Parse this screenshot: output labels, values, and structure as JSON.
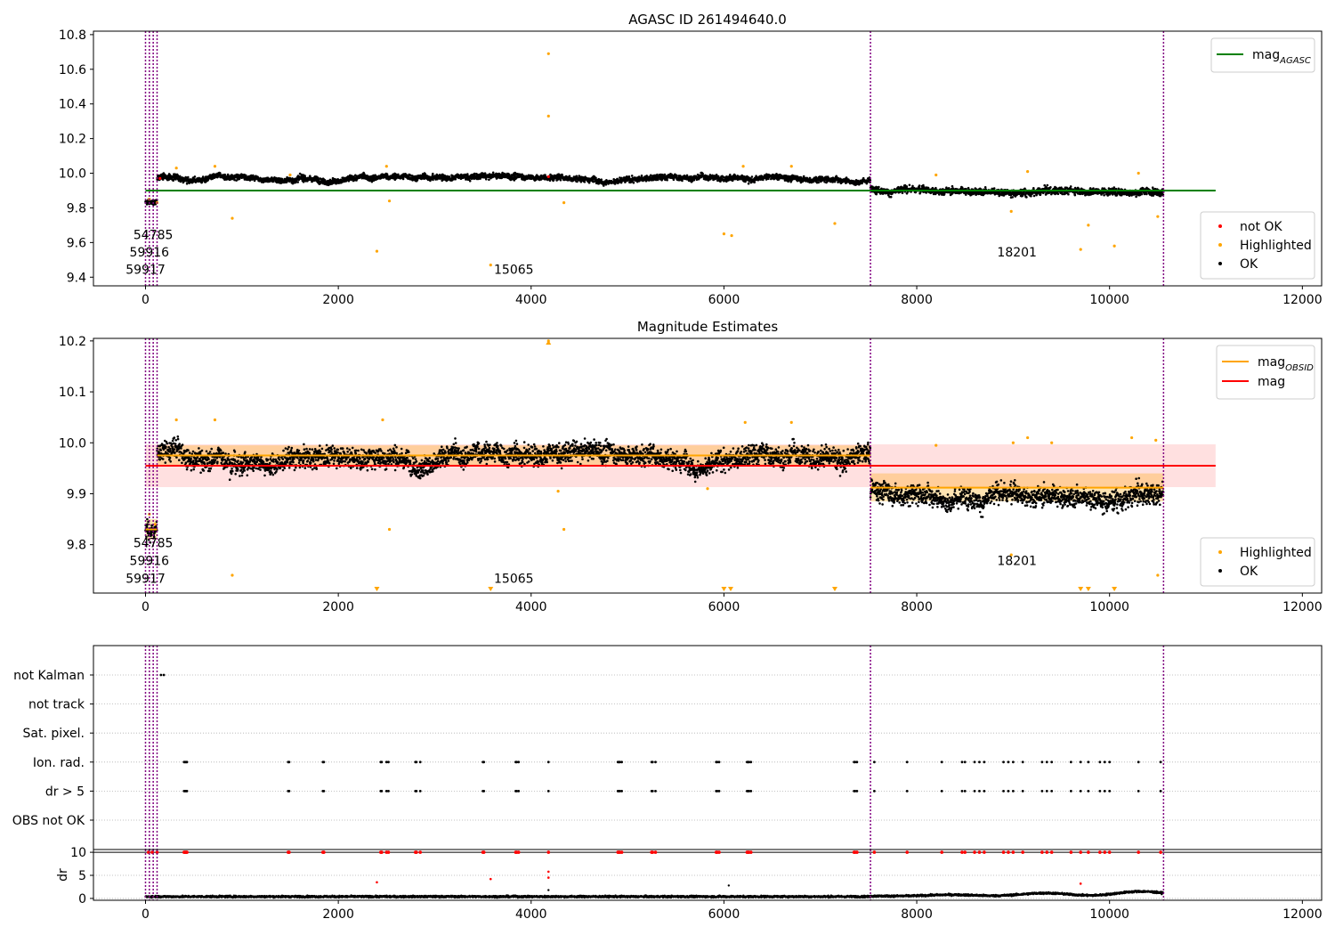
{
  "chart_data": [
    {
      "type": "scatter",
      "title": "AGASC ID 261494640.0",
      "xlim": [
        -540,
        12200
      ],
      "ylim": [
        9.35,
        10.82
      ],
      "xticks": [
        0,
        2000,
        4000,
        6000,
        8000,
        10000,
        12000
      ],
      "yticks": [
        9.4,
        9.6,
        9.8,
        10.0,
        10.2,
        10.4,
        10.6,
        10.8
      ],
      "ytick_decimals": 1,
      "vlines": [
        0,
        40,
        80,
        120,
        7520,
        10560
      ],
      "hline": {
        "y": 9.9,
        "x0": 0,
        "x1": 11100,
        "color": "#008000"
      },
      "segments": [
        {
          "x0": 0,
          "x1": 120,
          "level": 9.83,
          "noise": 0.02
        },
        {
          "x0": 120,
          "x1": 7520,
          "level": 9.975,
          "noise": 0.02
        },
        {
          "x0": 7520,
          "x1": 10560,
          "level": 9.91,
          "noise": 0.025
        }
      ],
      "highlighted": [
        [
          40,
          9.85
        ],
        [
          120,
          9.83
        ],
        [
          320,
          10.03
        ],
        [
          720,
          10.04
        ],
        [
          900,
          9.74
        ],
        [
          1500,
          9.99
        ],
        [
          2400,
          9.55
        ],
        [
          2500,
          10.04
        ],
        [
          2530,
          9.84
        ],
        [
          3580,
          9.47
        ],
        [
          4180,
          10.69
        ],
        [
          4180,
          10.33
        ],
        [
          4340,
          9.83
        ],
        [
          6000,
          9.65
        ],
        [
          6080,
          9.64
        ],
        [
          6200,
          10.04
        ],
        [
          6700,
          10.04
        ],
        [
          7150,
          9.71
        ],
        [
          8200,
          9.99
        ],
        [
          8980,
          9.78
        ],
        [
          9150,
          10.01
        ],
        [
          9700,
          9.56
        ],
        [
          9780,
          9.7
        ],
        [
          10050,
          9.58
        ],
        [
          10300,
          10.0
        ],
        [
          10500,
          9.75
        ]
      ],
      "not_ok": [
        [
          150,
          9.97
        ],
        [
          4180,
          9.98
        ]
      ],
      "annotations": [
        {
          "text": "54785",
          "x": 80,
          "y": 9.62
        },
        {
          "text": "59916",
          "x": 40,
          "y": 9.52
        },
        {
          "text": "59917",
          "x": 0,
          "y": 9.42
        },
        {
          "text": "15065",
          "x": 3820,
          "y": 9.42
        },
        {
          "text": "18201",
          "x": 9040,
          "y": 9.52
        }
      ],
      "legend_lines": [
        {
          "label": "mag",
          "sub": "AGASC",
          "color": "#008000"
        }
      ],
      "legend_points": [
        {
          "label": "not OK",
          "color": "#ff0000"
        },
        {
          "label": "Highlighted",
          "color": "#ffa500"
        },
        {
          "label": "OK",
          "color": "#000000"
        }
      ]
    },
    {
      "type": "scatter",
      "title": "Magnitude Estimates",
      "xlim": [
        -540,
        12200
      ],
      "ylim": [
        9.705,
        10.205
      ],
      "xticks": [
        0,
        2000,
        4000,
        6000,
        8000,
        10000,
        12000
      ],
      "yticks": [
        9.8,
        9.9,
        10.0,
        10.1,
        10.2
      ],
      "ytick_decimals": 1,
      "vlines": [
        0,
        40,
        80,
        120,
        7520,
        10560
      ],
      "band": {
        "y0": 9.913,
        "y1": 9.997,
        "x0": 0,
        "x1": 11100,
        "color": "#ff9999"
      },
      "hline": {
        "y": 9.955,
        "x0": 0,
        "x1": 11100,
        "color": "#ff0000"
      },
      "obsid_steps": [
        {
          "x0": 0,
          "x1": 120,
          "y": 9.83,
          "lo": 9.81,
          "hi": 9.85
        },
        {
          "x0": 120,
          "x1": 7520,
          "y": 9.975,
          "lo": 9.955,
          "hi": 9.995
        },
        {
          "x0": 7520,
          "x1": 10560,
          "y": 9.912,
          "lo": 9.885,
          "hi": 9.94
        }
      ],
      "segments": [
        {
          "x0": 0,
          "x1": 120,
          "level": 9.83,
          "noise": 0.02
        },
        {
          "x0": 120,
          "x1": 7520,
          "level": 9.975,
          "noise": 0.025
        },
        {
          "x0": 7520,
          "x1": 10560,
          "level": 9.91,
          "noise": 0.025
        }
      ],
      "highlighted": [
        [
          40,
          9.86
        ],
        [
          100,
          9.84
        ],
        [
          320,
          10.045
        ],
        [
          720,
          10.045
        ],
        [
          900,
          9.74
        ],
        [
          2460,
          10.045
        ],
        [
          2530,
          9.83
        ],
        [
          4180,
          10.2
        ],
        [
          4280,
          9.905
        ],
        [
          4340,
          9.83
        ],
        [
          5830,
          9.91
        ],
        [
          6220,
          10.04
        ],
        [
          6700,
          10.04
        ],
        [
          8200,
          9.995
        ],
        [
          8980,
          9.78
        ],
        [
          9000,
          10.0
        ],
        [
          9150,
          10.01
        ],
        [
          9400,
          10.0
        ],
        [
          10230,
          10.01
        ],
        [
          10480,
          10.005
        ],
        [
          10500,
          9.74
        ]
      ],
      "triangles_down": [
        2400,
        3580,
        6000,
        6070,
        7150,
        9700,
        9780,
        10050
      ],
      "triangles_up": [
        4180
      ],
      "annotations": [
        {
          "text": "54785",
          "x": 80,
          "y": 9.795
        },
        {
          "text": "59916",
          "x": 40,
          "y": 9.76
        },
        {
          "text": "59917",
          "x": 0,
          "y": 9.725
        },
        {
          "text": "15065",
          "x": 3820,
          "y": 9.725
        },
        {
          "text": "18201",
          "x": 9040,
          "y": 9.76
        }
      ],
      "legend_lines": [
        {
          "label": "mag",
          "sub": "OBSID",
          "color": "#ffa500"
        },
        {
          "label": "mag",
          "sub": "",
          "color": "#ff0000"
        }
      ],
      "legend_points": [
        {
          "label": "Highlighted",
          "color": "#ffa500"
        },
        {
          "label": "OK",
          "color": "#000000"
        }
      ]
    },
    {
      "type": "scatter",
      "xlim": [
        -540,
        12200
      ],
      "xticks": [
        0,
        2000,
        4000,
        6000,
        8000,
        10000,
        12000
      ],
      "vlines": [
        0,
        40,
        80,
        120,
        7520,
        10560
      ],
      "flag_rows": [
        "not Kalman",
        "not track",
        "Sat. pixel.",
        "Ion. rad.",
        "dr > 5",
        "OBS not OK"
      ],
      "flag_points": {
        "not Kalman": [
          160,
          190
        ],
        "not track": [],
        "Sat. pixel.": [],
        "Ion. rad.": [
          400,
          410,
          420,
          430,
          1480,
          1490,
          1840,
          1850,
          2440,
          2450,
          2500,
          2520,
          2800,
          2810,
          2850,
          3500,
          3510,
          3840,
          3850,
          3870,
          4180,
          4900,
          4910,
          4920,
          4940,
          5250,
          5260,
          5290,
          5920,
          5930,
          5950,
          6240,
          6250,
          6260,
          6280,
          7350,
          7360,
          7380,
          7560,
          7900,
          8260,
          8470,
          8500,
          8600,
          8650,
          8700,
          8900,
          8950,
          9000,
          9100,
          9300,
          9350,
          9400,
          9600,
          9700,
          9780,
          9900,
          9950,
          10000,
          10300,
          10530
        ],
        "dr > 5": [
          400,
          410,
          420,
          430,
          1480,
          1490,
          1840,
          1850,
          2440,
          2450,
          2500,
          2520,
          2800,
          2810,
          2850,
          3500,
          3510,
          3840,
          3850,
          3870,
          4180,
          4900,
          4910,
          4920,
          4940,
          5250,
          5260,
          5290,
          5920,
          5930,
          5950,
          6240,
          6250,
          6260,
          6280,
          7350,
          7360,
          7380,
          7560,
          7900,
          8260,
          8470,
          8500,
          8600,
          8650,
          8700,
          8900,
          8950,
          9000,
          9100,
          9300,
          9350,
          9400,
          9600,
          9700,
          9780,
          9900,
          9950,
          10000,
          10300,
          10530
        ],
        "OBS not OK": []
      },
      "dr_panel": {
        "ylabel": "dr",
        "ylim": [
          -0.4,
          10.6
        ],
        "yticks": [
          0,
          5,
          10
        ],
        "ytick_decimals": 0,
        "hline_y": 10,
        "red_x": [
          30,
          70,
          120,
          400,
          410,
          420,
          430,
          1480,
          1490,
          1840,
          1850,
          2440,
          2450,
          2500,
          2520,
          2800,
          2810,
          2850,
          3500,
          3510,
          3840,
          3850,
          3870,
          4180,
          4900,
          4910,
          4920,
          4940,
          5250,
          5260,
          5290,
          5920,
          5930,
          5950,
          6240,
          6250,
          6260,
          6280,
          7350,
          7360,
          7380,
          7560,
          7900,
          8260,
          8470,
          8500,
          8600,
          8650,
          8700,
          8900,
          8950,
          9000,
          9100,
          9300,
          9350,
          9400,
          9600,
          9700,
          9780,
          9900,
          9950,
          10000,
          10300,
          10530
        ],
        "red_low": [
          [
            2400,
            3.5
          ],
          [
            3580,
            4.2
          ],
          [
            4180,
            5.8
          ],
          [
            4180,
            4.5
          ],
          [
            9700,
            3.2
          ]
        ],
        "black_extra": [
          [
            4180,
            1.8
          ],
          [
            6050,
            2.8
          ]
        ],
        "black_level": 0.4,
        "black_rise": [
          [
            7520,
            0.5
          ],
          [
            10560,
            1.6
          ]
        ]
      }
    }
  ]
}
